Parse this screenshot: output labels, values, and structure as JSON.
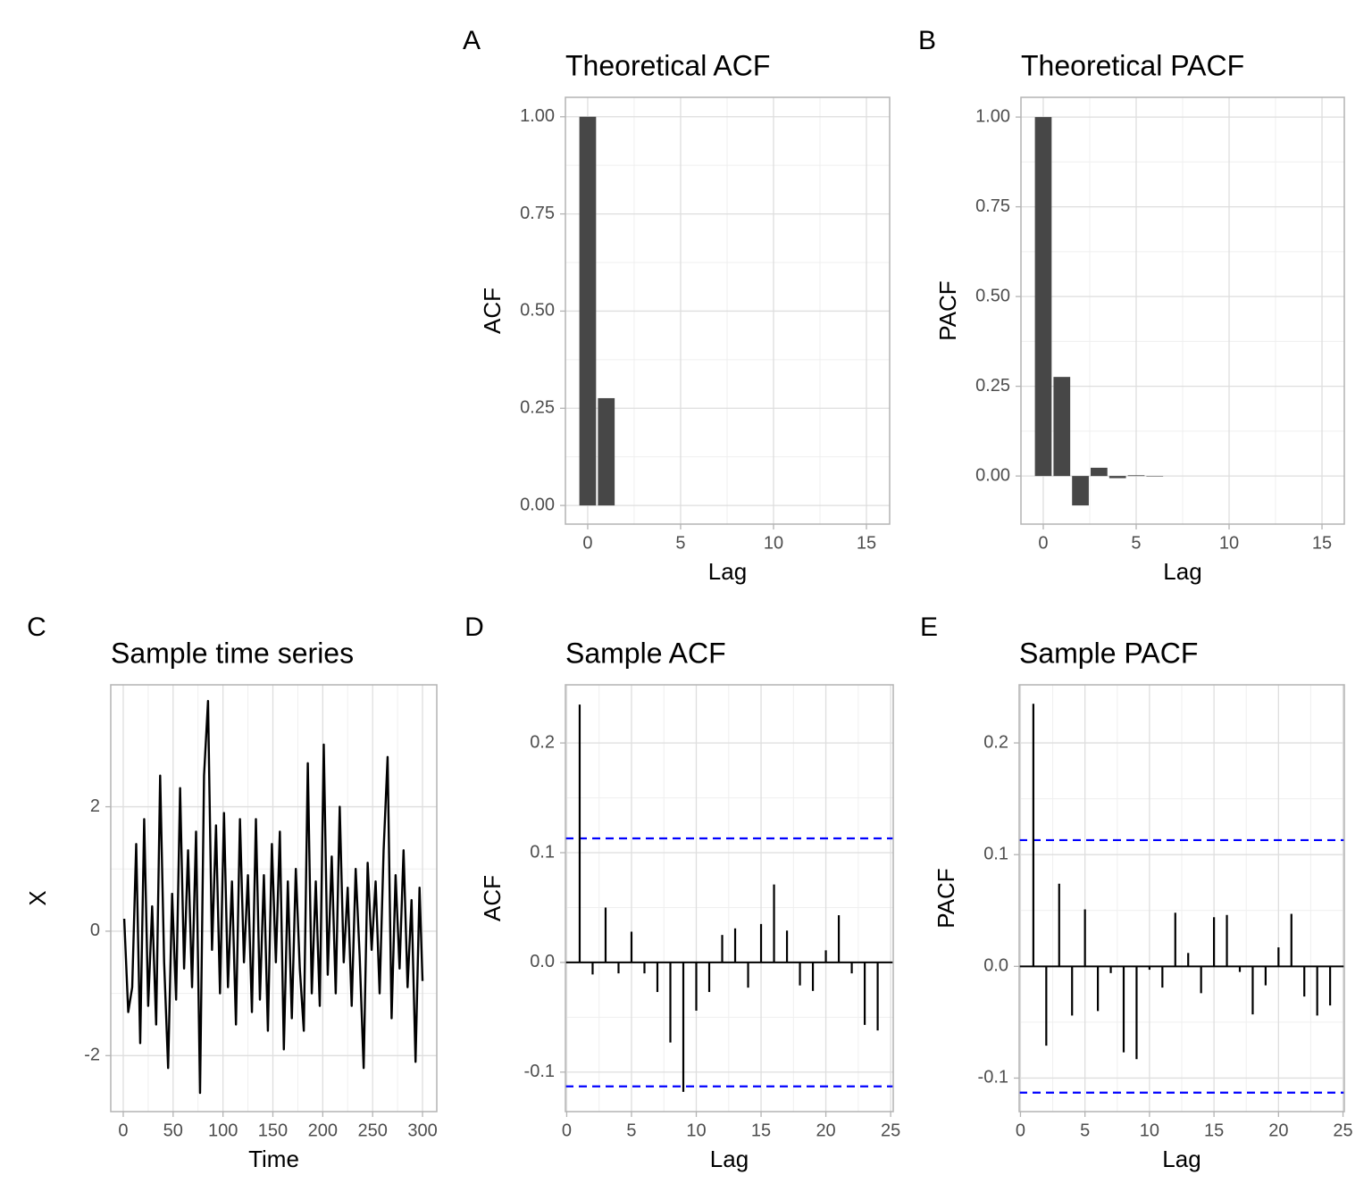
{
  "chart_data": [
    {
      "type": "bar",
      "panel_label": "A",
      "title": "Theoretical ACF",
      "x_label": "Lag",
      "y_label": "ACF",
      "x": [
        0,
        1
      ],
      "values": [
        1,
        0.276
      ],
      "color": "#474747",
      "xlim": [
        -1.2,
        16.25
      ],
      "xticks": [
        0,
        5,
        10,
        15
      ],
      "ylim": [
        -0.048,
        1.05
      ],
      "yticks": [
        {
          "value": 0,
          "label": "0.00"
        },
        {
          "value": 0.25,
          "label": "0.25"
        },
        {
          "value": 0.5,
          "label": "0.50"
        },
        {
          "value": 0.75,
          "label": "0.75"
        },
        {
          "value": 1,
          "label": "1.00"
        }
      ],
      "grid": true
    },
    {
      "type": "bar",
      "panel_label": "B",
      "title": "Theoretical PACF",
      "x_label": "Lag",
      "y_label": "PACF",
      "x": [
        0,
        1,
        2,
        3,
        4,
        5,
        6
      ],
      "values": [
        1,
        0.276,
        -0.082,
        0.023,
        -0.006,
        0.002,
        -0.001
      ],
      "color": "#474747",
      "xlim": [
        -1.2,
        16.2
      ],
      "xticks": [
        0,
        5,
        10,
        15
      ],
      "ylim": [
        -0.134,
        1.055
      ],
      "yticks": [
        {
          "value": 0,
          "label": "0.00"
        },
        {
          "value": 0.25,
          "label": "0.25"
        },
        {
          "value": 0.5,
          "label": "0.50"
        },
        {
          "value": 0.75,
          "label": "0.75"
        },
        {
          "value": 1,
          "label": "1.00"
        }
      ],
      "grid": true
    },
    {
      "type": "line",
      "panel_label": "C",
      "title": "Sample time series",
      "x_label": "Time",
      "y_label": "X",
      "x": [
        1,
        5,
        9,
        13,
        17,
        21,
        25,
        29,
        33,
        37,
        41,
        45,
        49,
        53,
        57,
        61,
        65,
        69,
        73,
        77,
        81,
        85,
        89,
        93,
        97,
        101,
        105,
        109,
        113,
        117,
        121,
        125,
        129,
        133,
        137,
        141,
        145,
        149,
        153,
        157,
        161,
        165,
        169,
        173,
        177,
        181,
        185,
        189,
        193,
        197,
        201,
        205,
        209,
        213,
        217,
        221,
        225,
        229,
        233,
        237,
        241,
        245,
        249,
        253,
        257,
        261,
        265,
        269,
        273,
        277,
        281,
        285,
        289,
        293,
        297,
        300
      ],
      "values": [
        0.2,
        -1.3,
        -0.9,
        1.4,
        -1.8,
        1.8,
        -1.2,
        0.4,
        -1.5,
        2.5,
        -0.5,
        -2.2,
        0.6,
        -1.1,
        2.3,
        -0.6,
        1.3,
        -0.9,
        1.6,
        -2.6,
        2.5,
        3.7,
        -0.3,
        1.7,
        -1.0,
        1.9,
        -0.9,
        0.8,
        -1.5,
        1.8,
        -0.5,
        0.9,
        -1.3,
        1.8,
        -1.1,
        0.9,
        -1.6,
        1.4,
        -0.5,
        1.6,
        -1.9,
        0.8,
        -1.4,
        1.0,
        -0.6,
        -1.6,
        2.7,
        -1.0,
        0.8,
        -1.2,
        3.0,
        -0.7,
        1.2,
        -1.0,
        2.0,
        -0.5,
        0.7,
        -1.2,
        1.0,
        -0.4,
        -2.2,
        1.1,
        -0.3,
        0.8,
        -1.0,
        1.3,
        2.8,
        -1.4,
        0.9,
        -0.6,
        1.3,
        -0.9,
        0.5,
        -2.1,
        0.7,
        -0.8
      ],
      "color": "#000000",
      "xlim": [
        -12.5,
        314.3
      ],
      "xticks": [
        0,
        50,
        100,
        150,
        200,
        250,
        300
      ],
      "ylim": [
        -2.9,
        3.96
      ],
      "yticks": [
        -2,
        0,
        2
      ],
      "grid": true
    },
    {
      "type": "stem",
      "panel_label": "D",
      "title": "Sample ACF",
      "x_label": "Lag",
      "y_label": "ACF",
      "x": [
        1,
        2,
        3,
        4,
        5,
        6,
        7,
        8,
        9,
        10,
        11,
        12,
        13,
        14,
        15,
        16,
        17,
        18,
        19,
        20,
        21,
        22,
        23,
        24
      ],
      "values": [
        0.235,
        -0.011,
        0.05,
        -0.01,
        0.028,
        -0.01,
        -0.027,
        -0.073,
        -0.118,
        -0.044,
        -0.027,
        0.025,
        0.031,
        -0.023,
        0.035,
        0.071,
        0.029,
        -0.021,
        -0.026,
        0.011,
        0.043,
        -0.01,
        -0.057,
        -0.062
      ],
      "color": "#000000",
      "conf_limits": [
        -0.113,
        0.113
      ],
      "conf_color": "#0000ff",
      "xlim": [
        -0.1,
        25.2
      ],
      "xticks": [
        0,
        5,
        10,
        15,
        20,
        25
      ],
      "ylim": [
        -0.136,
        0.253
      ],
      "yticks": [
        -0.1,
        {
          "value": 0,
          "label": "0.0"
        },
        0.1,
        0.2
      ],
      "grid": true
    },
    {
      "type": "stem",
      "panel_label": "E",
      "title": "Sample PACF",
      "x_label": "Lag",
      "y_label": "PACF",
      "x": [
        1,
        2,
        3,
        4,
        5,
        6,
        7,
        8,
        9,
        10,
        11,
        12,
        13,
        14,
        15,
        16,
        17,
        18,
        19,
        20,
        21,
        22,
        23,
        24
      ],
      "values": [
        0.235,
        -0.071,
        0.074,
        -0.044,
        0.051,
        -0.04,
        -0.006,
        -0.077,
        -0.083,
        -0.003,
        -0.019,
        0.048,
        0.012,
        -0.024,
        0.044,
        0.046,
        -0.005,
        -0.043,
        -0.017,
        0.017,
        0.047,
        -0.027,
        -0.044,
        -0.035
      ],
      "color": "#000000",
      "conf_limits": [
        -0.113,
        0.113
      ],
      "conf_color": "#0000ff",
      "xlim": [
        -0.1,
        25.1
      ],
      "xticks": [
        0,
        5,
        10,
        15,
        20,
        25
      ],
      "ylim": [
        -0.13,
        0.252
      ],
      "yticks": [
        -0.1,
        {
          "value": 0,
          "label": "0.0"
        },
        0.1,
        0.2
      ],
      "grid": true
    }
  ]
}
